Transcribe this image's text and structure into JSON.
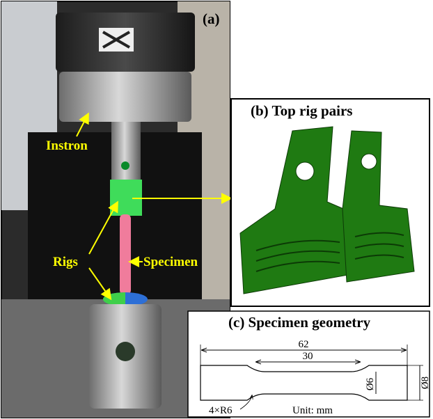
{
  "panel_a": {
    "label": "(a)",
    "annotations": [
      "Instron",
      "Rigs",
      "Specimen"
    ]
  },
  "panel_b": {
    "title": "(b) Top rig pairs"
  },
  "panel_c": {
    "title": "(c) Specimen geometry",
    "dimensions": {
      "length": "62",
      "gauge_length": "30",
      "gauge_diameter": "Ø6",
      "grip_diameter": "Ø8",
      "fillet": "4×R6"
    },
    "unit_note": "Unit: mm"
  }
}
